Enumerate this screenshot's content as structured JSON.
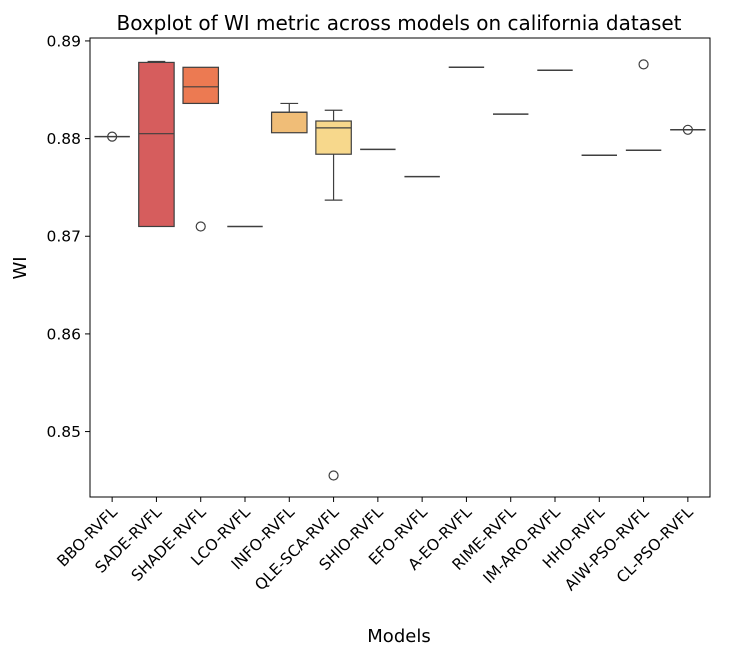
{
  "chart_data": {
    "type": "boxplot",
    "title": "Boxplot of WI metric across models on california dataset",
    "xlabel": "Models",
    "ylabel": "WI",
    "ylim": [
      0.8433,
      0.8903
    ],
    "yticks": [
      0.85,
      0.86,
      0.87,
      0.88,
      0.89
    ],
    "ytick_labels": [
      "0.85",
      "0.86",
      "0.87",
      "0.88",
      "0.89"
    ],
    "grid": false,
    "categories": [
      "BBO-RVFL",
      "SADE-RVFL",
      "SHADE-RVFL",
      "LCO-RVFL",
      "INFO-RVFL",
      "QLE-SCA-RVFL",
      "SHIO-RVFL",
      "EFO-RVFL",
      "A-EO-RVFL",
      "RIME-RVFL",
      "IM-ARO-RVFL",
      "HHO-RVFL",
      "AIW-PSO-RVFL",
      "CL-PSO-RVFL"
    ],
    "boxes": [
      {
        "q1": 0.8802,
        "median": 0.8802,
        "q3": 0.8802,
        "whislo": 0.8802,
        "whishi": 0.8802,
        "fliers": [
          0.8802
        ],
        "color": "#d9545a"
      },
      {
        "q1": 0.871,
        "median": 0.8805,
        "q3": 0.8878,
        "whislo": 0.871,
        "whishi": 0.8879,
        "fliers": [],
        "color": "#d65d5d"
      },
      {
        "q1": 0.8836,
        "median": 0.8853,
        "q3": 0.8873,
        "whislo": 0.8836,
        "whishi": 0.8873,
        "fliers": [
          0.871
        ],
        "color": "#ec7a52"
      },
      {
        "q1": 0.871,
        "median": 0.871,
        "q3": 0.871,
        "whislo": 0.871,
        "whishi": 0.871,
        "fliers": [],
        "color": "#f29a5d"
      },
      {
        "q1": 0.8806,
        "median": 0.8827,
        "q3": 0.8827,
        "whislo": 0.8806,
        "whishi": 0.8836,
        "fliers": [],
        "color": "#f0bd77"
      },
      {
        "q1": 0.8784,
        "median": 0.8811,
        "q3": 0.8818,
        "whislo": 0.8737,
        "whishi": 0.8829,
        "fliers": [
          0.8455
        ],
        "color": "#f7d88c"
      },
      {
        "q1": 0.8789,
        "median": 0.8789,
        "q3": 0.8789,
        "whislo": 0.8789,
        "whishi": 0.8789,
        "fliers": [],
        "color": "#faecaa"
      },
      {
        "q1": 0.8761,
        "median": 0.8761,
        "q3": 0.8761,
        "whislo": 0.8761,
        "whishi": 0.8761,
        "fliers": [],
        "color": "#f5f2c0"
      },
      {
        "q1": 0.8873,
        "median": 0.8873,
        "q3": 0.8873,
        "whislo": 0.8873,
        "whishi": 0.8873,
        "fliers": [],
        "color": "#e6f4b4"
      },
      {
        "q1": 0.8825,
        "median": 0.8825,
        "q3": 0.8825,
        "whislo": 0.8825,
        "whishi": 0.8825,
        "fliers": [],
        "color": "#cde9a5"
      },
      {
        "q1": 0.887,
        "median": 0.887,
        "q3": 0.887,
        "whislo": 0.887,
        "whishi": 0.887,
        "fliers": [],
        "color": "#a8d8a4"
      },
      {
        "q1": 0.8783,
        "median": 0.8783,
        "q3": 0.8783,
        "whislo": 0.8783,
        "whishi": 0.8783,
        "fliers": [],
        "color": "#7fc6a5"
      },
      {
        "q1": 0.8788,
        "median": 0.8788,
        "q3": 0.8788,
        "whislo": 0.8788,
        "whishi": 0.8788,
        "fliers": [
          0.8876
        ],
        "color": "#5aa9b4"
      },
      {
        "q1": 0.8809,
        "median": 0.8809,
        "q3": 0.8809,
        "whislo": 0.8809,
        "whishi": 0.8809,
        "fliers": [
          0.8809
        ],
        "color": "#4a86b8"
      }
    ]
  }
}
